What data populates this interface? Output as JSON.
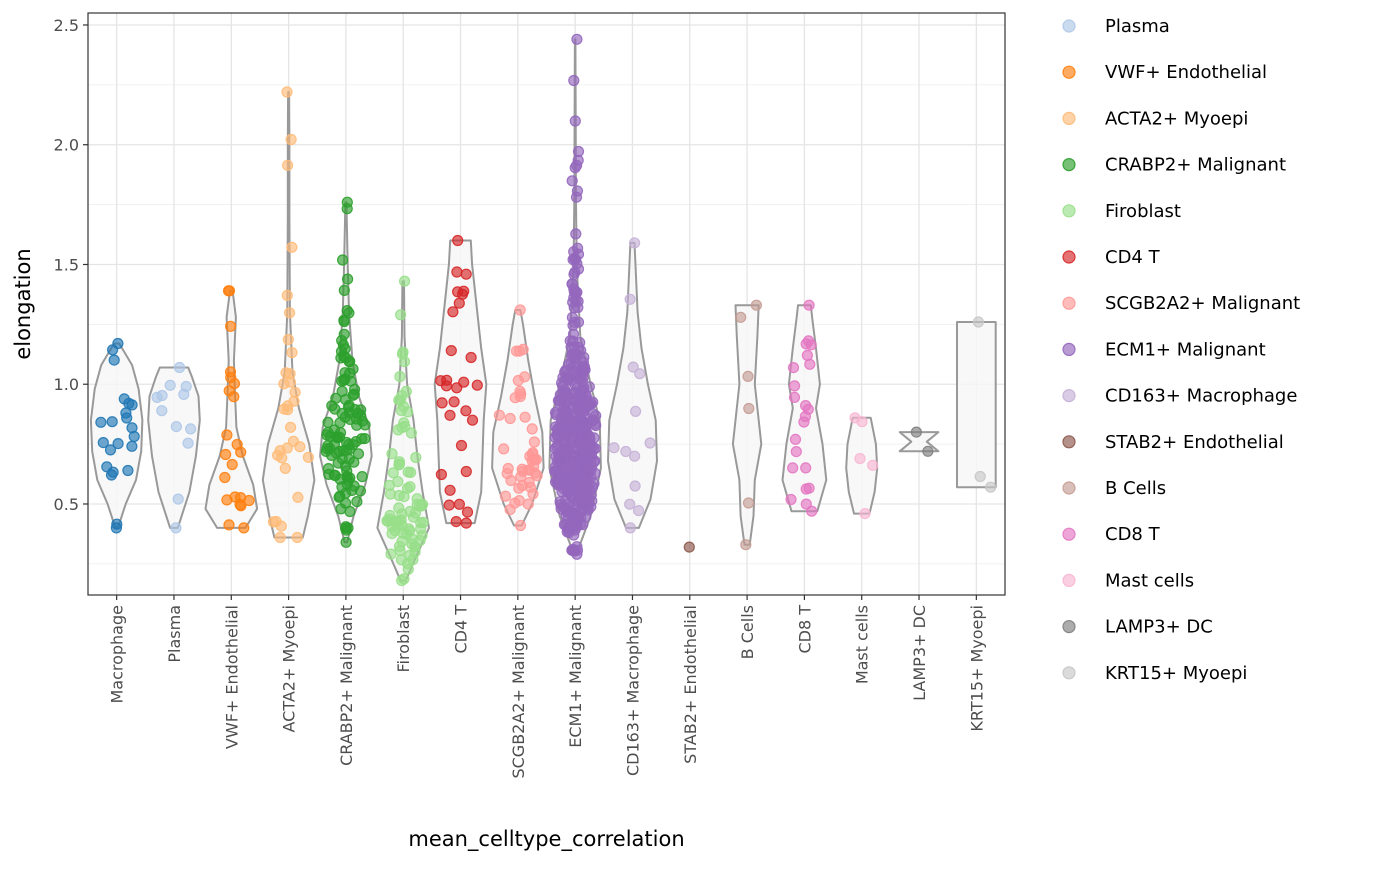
{
  "chart_data": {
    "type": "violin-jitter",
    "xlabel": "mean_celltype_correlation",
    "ylabel": "elongation",
    "ylim": [
      0.12,
      2.55
    ],
    "yticks": [
      0.5,
      1.0,
      1.5,
      2.0,
      2.5
    ],
    "ytick_labels": [
      "0.5",
      "1.0",
      "1.5",
      "2.0",
      "2.5"
    ],
    "grid": true,
    "legend_position": "right",
    "categories": [
      "Macrophage",
      "Plasma",
      "VWF+ Endothelial",
      "ACTA2+ Myoepi",
      "CRABP2+ Malignant",
      "Firoblast",
      "CD4 T",
      "SCGB2A2+ Malignant",
      "ECM1+ Malignant",
      "CD163+ Macrophage",
      "STAB2+ Endothelial",
      "B Cells",
      "CD8 T",
      "Mast cells",
      "LAMP3+ DC",
      "KRT15+ Myoepi"
    ],
    "legend_entries": [
      {
        "label": "Plasma",
        "color": "#aec7e8"
      },
      {
        "label": "VWF+ Endothelial",
        "color": "#ff7f0e"
      },
      {
        "label": "ACTA2+ Myoepi",
        "color": "#ffbb78"
      },
      {
        "label": "CRABP2+ Malignant",
        "color": "#2ca02c"
      },
      {
        "label": "Firoblast",
        "color": "#98df8a"
      },
      {
        "label": "CD4 T",
        "color": "#d62728"
      },
      {
        "label": "SCGB2A2+ Malignant",
        "color": "#ff9896"
      },
      {
        "label": "ECM1+ Malignant",
        "color": "#9467bd"
      },
      {
        "label": "CD163+ Macrophage",
        "color": "#c5b0d5"
      },
      {
        "label": "STAB2+ Endothelial",
        "color": "#8c564b"
      },
      {
        "label": "B Cells",
        "color": "#c49c94"
      },
      {
        "label": "CD8 T",
        "color": "#e377c2"
      },
      {
        "label": "Mast cells",
        "color": "#f7b6d2"
      },
      {
        "label": "LAMP3+ DC",
        "color": "#7f7f7f"
      },
      {
        "label": "KRT15+ Myoepi",
        "color": "#c7c7c7"
      }
    ],
    "series": [
      {
        "category": "Macrophage",
        "color": "#1f77b4",
        "count": 22,
        "min": 0.4,
        "max": 1.17,
        "density": [
          [
            0.4,
            0.05
          ],
          [
            0.5,
            0.35
          ],
          [
            0.6,
            0.75
          ],
          [
            0.72,
            0.95
          ],
          [
            0.85,
            1.0
          ],
          [
            0.98,
            0.85
          ],
          [
            1.08,
            0.6
          ],
          [
            1.17,
            0.1
          ]
        ]
      },
      {
        "category": "Plasma",
        "color": "#aec7e8",
        "count": 12,
        "min": 0.4,
        "max": 1.07,
        "density": [
          [
            0.4,
            0.15
          ],
          [
            0.55,
            0.6
          ],
          [
            0.7,
            0.85
          ],
          [
            0.85,
            1.0
          ],
          [
            0.95,
            0.95
          ],
          [
            1.03,
            0.7
          ],
          [
            1.07,
            0.55
          ]
        ]
      },
      {
        "category": "VWF+ Endothelial",
        "color": "#ff7f0e",
        "count": 22,
        "min": 0.4,
        "max": 1.39,
        "density": [
          [
            0.4,
            0.55
          ],
          [
            0.48,
            1.0
          ],
          [
            0.58,
            0.85
          ],
          [
            0.7,
            0.45
          ],
          [
            0.82,
            0.2
          ],
          [
            0.95,
            0.15
          ],
          [
            1.1,
            0.1
          ],
          [
            1.28,
            0.18
          ],
          [
            1.39,
            0.05
          ]
        ]
      },
      {
        "category": "ACTA2+ Myoepi",
        "color": "#ffbb78",
        "count": 32,
        "min": 0.36,
        "max": 2.22,
        "density": [
          [
            0.36,
            0.55
          ],
          [
            0.45,
            0.75
          ],
          [
            0.6,
            1.0
          ],
          [
            0.75,
            0.8
          ],
          [
            0.9,
            0.4
          ],
          [
            1.05,
            0.15
          ],
          [
            1.3,
            0.05
          ],
          [
            1.7,
            0.03
          ],
          [
            2.0,
            0.03
          ],
          [
            2.22,
            0.02
          ]
        ]
      },
      {
        "category": "CRABP2+ Malignant",
        "color": "#2ca02c",
        "count": 110,
        "min": 0.34,
        "max": 1.76,
        "density": [
          [
            0.34,
            0.05
          ],
          [
            0.45,
            0.3
          ],
          [
            0.58,
            0.75
          ],
          [
            0.7,
            1.0
          ],
          [
            0.82,
            0.9
          ],
          [
            0.95,
            0.5
          ],
          [
            1.1,
            0.25
          ],
          [
            1.3,
            0.12
          ],
          [
            1.5,
            0.07
          ],
          [
            1.76,
            0.02
          ]
        ]
      },
      {
        "category": "Firoblast",
        "color": "#98df8a",
        "count": 80,
        "min": 0.18,
        "max": 1.43,
        "density": [
          [
            0.18,
            0.1
          ],
          [
            0.28,
            0.5
          ],
          [
            0.4,
            1.0
          ],
          [
            0.55,
            0.75
          ],
          [
            0.7,
            0.55
          ],
          [
            0.85,
            0.4
          ],
          [
            1.0,
            0.15
          ],
          [
            1.2,
            0.05
          ],
          [
            1.43,
            0.03
          ]
        ]
      },
      {
        "category": "CD4 T",
        "color": "#d62728",
        "count": 30,
        "min": 0.42,
        "max": 1.6,
        "density": [
          [
            0.42,
            0.55
          ],
          [
            0.55,
            0.8
          ],
          [
            0.7,
            0.85
          ],
          [
            0.85,
            0.9
          ],
          [
            1.0,
            1.0
          ],
          [
            1.15,
            0.8
          ],
          [
            1.35,
            0.6
          ],
          [
            1.5,
            0.45
          ],
          [
            1.6,
            0.4
          ]
        ]
      },
      {
        "category": "SCGB2A2+ Malignant",
        "color": "#ff9896",
        "count": 45,
        "min": 0.41,
        "max": 1.31,
        "density": [
          [
            0.41,
            0.15
          ],
          [
            0.5,
            0.55
          ],
          [
            0.65,
            1.0
          ],
          [
            0.8,
            0.95
          ],
          [
            0.95,
            0.65
          ],
          [
            1.1,
            0.4
          ],
          [
            1.25,
            0.2
          ],
          [
            1.31,
            0.1
          ]
        ]
      },
      {
        "category": "ECM1+ Malignant",
        "color": "#9467bd",
        "count": 420,
        "min": 0.29,
        "max": 2.44,
        "density": [
          [
            0.29,
            0.05
          ],
          [
            0.45,
            0.6
          ],
          [
            0.65,
            1.0
          ],
          [
            0.85,
            0.95
          ],
          [
            1.0,
            0.6
          ],
          [
            1.2,
            0.2
          ],
          [
            1.5,
            0.06
          ],
          [
            1.8,
            0.03
          ],
          [
            2.1,
            0.02
          ],
          [
            2.44,
            0.01
          ]
        ]
      },
      {
        "category": "CD163+ Macrophage",
        "color": "#c5b0d5",
        "count": 13,
        "min": 0.4,
        "max": 1.59,
        "density": [
          [
            0.4,
            0.25
          ],
          [
            0.52,
            0.7
          ],
          [
            0.68,
            0.95
          ],
          [
            0.85,
            0.9
          ],
          [
            1.0,
            0.6
          ],
          [
            1.15,
            0.35
          ],
          [
            1.3,
            0.2
          ],
          [
            1.59,
            0.08
          ]
        ]
      },
      {
        "category": "STAB2+ Endothelial",
        "color": "#8c564b",
        "count": 1,
        "min": 0.32,
        "max": 0.32,
        "density": []
      },
      {
        "category": "B Cells",
        "color": "#c49c94",
        "count": 6,
        "min": 0.33,
        "max": 1.33,
        "density": [
          [
            0.33,
            0.1
          ],
          [
            0.45,
            0.25
          ],
          [
            0.6,
            0.3
          ],
          [
            0.75,
            0.55
          ],
          [
            0.85,
            0.45
          ],
          [
            1.0,
            0.3
          ],
          [
            1.2,
            0.4
          ],
          [
            1.33,
            0.45
          ]
        ]
      },
      {
        "category": "CD8 T",
        "color": "#e377c2",
        "count": 22,
        "min": 0.47,
        "max": 1.33,
        "density": [
          [
            0.47,
            0.5
          ],
          [
            0.6,
            0.85
          ],
          [
            0.75,
            0.7
          ],
          [
            0.9,
            0.45
          ],
          [
            1.0,
            0.6
          ],
          [
            1.15,
            0.45
          ],
          [
            1.28,
            0.3
          ],
          [
            1.33,
            0.25
          ]
        ]
      },
      {
        "category": "Mast cells",
        "color": "#f7b6d2",
        "count": 5,
        "min": 0.46,
        "max": 0.86,
        "density": [
          [
            0.46,
            0.3
          ],
          [
            0.55,
            0.5
          ],
          [
            0.65,
            0.6
          ],
          [
            0.75,
            0.55
          ],
          [
            0.86,
            0.35
          ]
        ]
      },
      {
        "category": "LAMP3+ DC",
        "color": "#7f7f7f",
        "count": 2,
        "min": 0.72,
        "max": 0.8,
        "density": [
          [
            0.72,
            0.75
          ],
          [
            0.76,
            0.3
          ],
          [
            0.8,
            0.75
          ]
        ]
      },
      {
        "category": "KRT15+ Myoepi",
        "color": "#c7c7c7",
        "count": 3,
        "min": 0.57,
        "max": 1.26,
        "density": [
          [
            0.57,
            0.75
          ],
          [
            0.9,
            0.75
          ],
          [
            1.26,
            0.75
          ]
        ]
      }
    ]
  }
}
